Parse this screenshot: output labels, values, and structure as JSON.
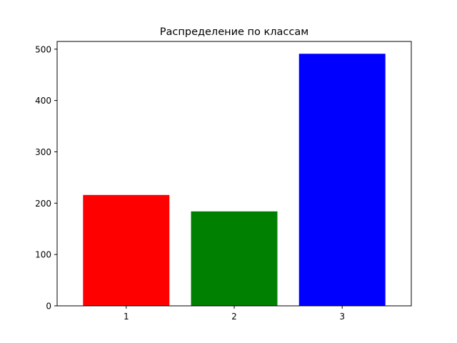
{
  "chart_data": {
    "type": "bar",
    "title": "Распределение по классам",
    "xlabel": "",
    "ylabel": "",
    "categories": [
      "1",
      "2",
      "3"
    ],
    "values": [
      216,
      184,
      491
    ],
    "colors": [
      "#ff0000",
      "#008000",
      "#0000ff"
    ],
    "ylim": [
      0,
      515
    ],
    "yticks": [
      0,
      100,
      200,
      300,
      400,
      500
    ],
    "grid": false,
    "legend": "none"
  }
}
